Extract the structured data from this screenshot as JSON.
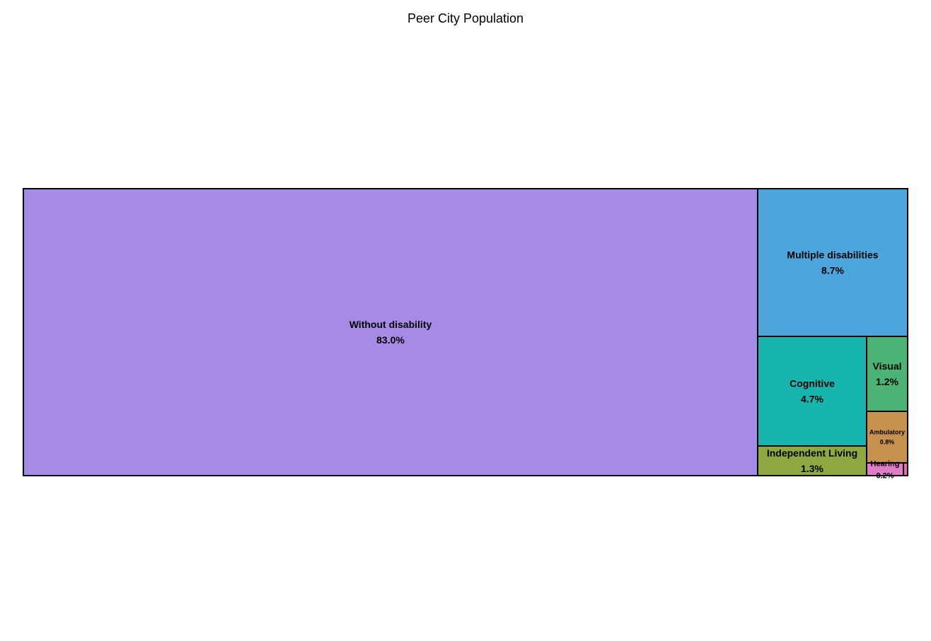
{
  "chart_data": {
    "type": "treemap",
    "title": "Peer City Population",
    "unit": "%",
    "cells": [
      {
        "name": "Without disability",
        "label": "83.0%",
        "value": 83.0,
        "color": "#a68be6"
      },
      {
        "name": "Multiple disabilities",
        "label": "8.7%",
        "value": 8.7,
        "color": "#4ca6db"
      },
      {
        "name": "Cognitive",
        "label": "4.7%",
        "value": 4.7,
        "color": "#17b5ae"
      },
      {
        "name": "Independent Living",
        "label": "1.3%",
        "value": 1.3,
        "color": "#8da940"
      },
      {
        "name": "Visual",
        "label": "1.2%",
        "value": 1.2,
        "color": "#4bb373"
      },
      {
        "name": "Ambulatory",
        "label": "0.8%",
        "value": 0.8,
        "color": "#c79150"
      },
      {
        "name": "Hearing",
        "label": "0.2%",
        "value": 0.2,
        "color": "#e07dc8"
      },
      {
        "name": "",
        "label": "",
        "value": 0.05,
        "color": "#e86aa8"
      }
    ]
  }
}
